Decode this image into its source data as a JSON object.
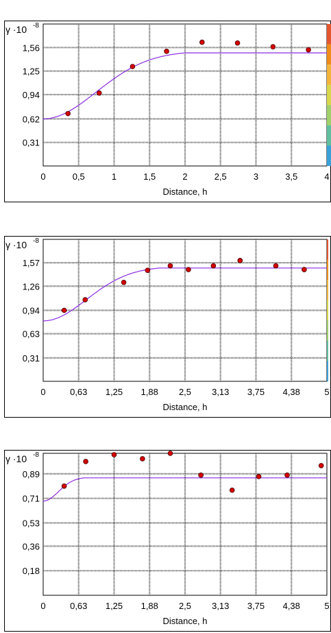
{
  "ylabel": "γ ·10",
  "yexp": "-8",
  "xlabel": "Distance, h",
  "colors": {
    "fit": "#8a2be2",
    "point": "#d40000",
    "grid": "#555555",
    "strip": [
      "#e4572e",
      "#f08c1a",
      "#f2b53a",
      "#d8d64a",
      "#9fd06a",
      "#5fbf9f",
      "#3aa0d8"
    ]
  },
  "chart_data": [
    {
      "type": "scatter",
      "grid": true,
      "xlim": [
        0,
        4
      ],
      "ylim": [
        0,
        1.87
      ],
      "xticks": [
        "0",
        "0,5",
        "1",
        "1,5",
        "2",
        "2,5",
        "3",
        "3,5",
        "4"
      ],
      "xtick_values": [
        0,
        0.5,
        1,
        1.5,
        2,
        2.5,
        3,
        3.5,
        4
      ],
      "yticks": [
        "0,31",
        "0,62",
        "0,94",
        "1,25",
        "1,56"
      ],
      "ytick_values": [
        0.31,
        0.62,
        0.94,
        1.25,
        1.56
      ],
      "series": [
        {
          "kind": "points",
          "x": [
            0.35,
            0.79,
            1.26,
            1.74,
            2.24,
            2.74,
            3.24,
            3.74
          ],
          "y": [
            0.69,
            0.96,
            1.31,
            1.51,
            1.63,
            1.62,
            1.57,
            1.53
          ]
        },
        {
          "kind": "model",
          "nugget": 0.62,
          "sill": 1.49,
          "range": 2.0
        }
      ]
    },
    {
      "type": "scatter",
      "grid": true,
      "xlim": [
        0,
        5
      ],
      "ylim": [
        0,
        1.88
      ],
      "xticks": [
        "0",
        "0,63",
        "1,25",
        "1,88",
        "2,5",
        "3,13",
        "3,75",
        "4,38",
        "5"
      ],
      "xtick_values": [
        0,
        0.625,
        1.25,
        1.875,
        2.5,
        3.125,
        3.75,
        4.375,
        5
      ],
      "yticks": [
        "0,31",
        "0,63",
        "0,94",
        "1,26",
        "1,57"
      ],
      "ytick_values": [
        0.31,
        0.63,
        0.94,
        1.26,
        1.57
      ],
      "series": [
        {
          "kind": "points",
          "x": [
            0.37,
            0.74,
            1.42,
            1.84,
            2.24,
            2.56,
            3.0,
            3.47,
            4.1,
            4.6
          ],
          "y": [
            0.94,
            1.08,
            1.31,
            1.47,
            1.53,
            1.48,
            1.53,
            1.6,
            1.53,
            1.48
          ]
        },
        {
          "kind": "model",
          "nugget": 0.8,
          "sill": 1.5,
          "range": 2.05
        }
      ]
    },
    {
      "type": "scatter",
      "grid": true,
      "xlim": [
        0,
        5
      ],
      "ylim": [
        0,
        1.04
      ],
      "xticks": [
        "0",
        "0,63",
        "1,25",
        "1,88",
        "2,5",
        "3,13",
        "3,75",
        "4,38",
        "5"
      ],
      "xtick_values": [
        0,
        0.625,
        1.25,
        1.875,
        2.5,
        3.125,
        3.75,
        4.375,
        5
      ],
      "yticks": [
        "0,18",
        "0,36",
        "0,53",
        "0,71",
        "0,89"
      ],
      "ytick_values": [
        0.18,
        0.36,
        0.53,
        0.71,
        0.89
      ],
      "series": [
        {
          "kind": "points",
          "x": [
            0.37,
            0.75,
            1.25,
            1.75,
            2.24,
            2.78,
            3.33,
            3.8,
            4.3,
            4.9
          ],
          "y": [
            0.8,
            0.98,
            1.03,
            1.0,
            1.04,
            0.88,
            0.77,
            0.87,
            0.88,
            0.95
          ]
        },
        {
          "kind": "model",
          "nugget": 0.69,
          "sill": 0.86,
          "range": 0.72
        }
      ]
    }
  ]
}
